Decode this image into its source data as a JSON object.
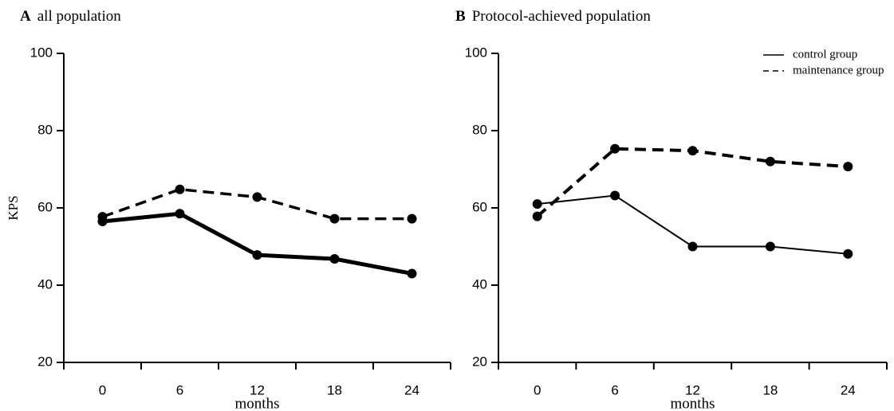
{
  "chart_data": [
    {
      "type": "line",
      "label": "A",
      "title": "all population",
      "y_label": "KPS",
      "x_label": "months",
      "categories": [
        "0",
        "6",
        "12",
        "18",
        "24"
      ],
      "ylim": [
        20,
        100
      ],
      "yticks": [
        20,
        40,
        60,
        80,
        100
      ],
      "series": [
        {
          "color": "#000000",
          "width": 5,
          "dash": "solid",
          "values": [
            56.5,
            58.5,
            47.8,
            46.8,
            43
          ]
        },
        {
          "color": "#000000",
          "width": 3.5,
          "dash": "dashed",
          "values": [
            57.7,
            64.8,
            62.8,
            57.2,
            57.2
          ]
        }
      ]
    },
    {
      "type": "line",
      "label": "B",
      "title": "Protocol-achieved population",
      "x_label": "months",
      "categories": [
        "0",
        "6",
        "12",
        "18",
        "24"
      ],
      "ylim": [
        20,
        100
      ],
      "yticks": [
        20,
        40,
        60,
        80,
        100
      ],
      "legend": "upper right",
      "series": [
        {
          "name": "control group",
          "color": "#000000",
          "width": 2,
          "dash": "solid",
          "values": [
            61,
            63.2,
            50,
            50,
            48.1
          ]
        },
        {
          "name": "maintenance group",
          "color": "#000000",
          "width": 4,
          "dash": "dashed",
          "values": [
            57.8,
            75.3,
            74.8,
            72,
            70.7
          ]
        }
      ]
    }
  ]
}
